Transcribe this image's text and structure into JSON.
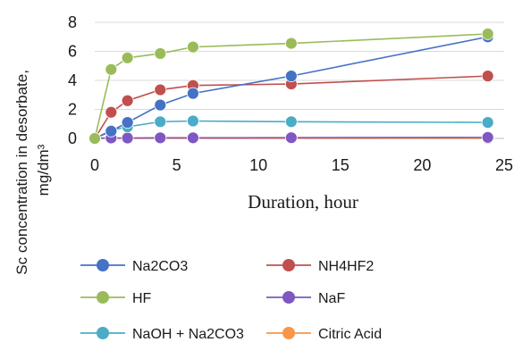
{
  "chart_data": {
    "type": "line",
    "title": "",
    "xlabel": "Duration, hour",
    "ylabel": [
      "Sc concentration in desorbate,",
      "mg/dm³"
    ],
    "xlim": [
      0,
      25
    ],
    "ylim": [
      0,
      8
    ],
    "xticks": [
      0,
      5,
      10,
      15,
      20,
      25
    ],
    "yticks": [
      0,
      2,
      4,
      6,
      8
    ],
    "grid": "horizontal",
    "legend_position": "bottom",
    "series": [
      {
        "name": "Na2CO3",
        "color": "#4472C4",
        "x": [
          0,
          1,
          2,
          4,
          6,
          12,
          24
        ],
        "y": [
          0,
          0.5,
          1.1,
          2.3,
          3.1,
          4.3,
          7.0
        ]
      },
      {
        "name": "NH4HF2",
        "color": "#C0504D",
        "x": [
          0,
          1,
          2,
          4,
          6,
          12,
          24
        ],
        "y": [
          0,
          1.8,
          2.6,
          3.35,
          3.65,
          3.75,
          4.3
        ]
      },
      {
        "name": "HF",
        "color": "#9BBB59",
        "x": [
          0,
          1,
          2,
          4,
          6,
          12,
          24
        ],
        "y": [
          0,
          4.75,
          5.55,
          5.85,
          6.3,
          6.55,
          7.2
        ]
      },
      {
        "name": "NaF",
        "color": "#7E57C2",
        "x": [
          0,
          1,
          2,
          4,
          6,
          12,
          24
        ],
        "y": [
          0.02,
          0.03,
          0.03,
          0.04,
          0.04,
          0.05,
          0.07
        ]
      },
      {
        "name": "NaOH + Na2CO3",
        "color": "#4BACC6",
        "x": [
          0,
          1,
          2,
          4,
          6,
          12,
          24
        ],
        "y": [
          0,
          0.55,
          0.8,
          1.15,
          1.2,
          1.15,
          1.1
        ]
      },
      {
        "name": "Citric Acid",
        "color": "#F79646",
        "x": [
          0,
          1,
          2,
          4,
          6,
          12,
          24
        ],
        "y": [
          0,
          0,
          0,
          0,
          0,
          0,
          0
        ]
      }
    ]
  }
}
